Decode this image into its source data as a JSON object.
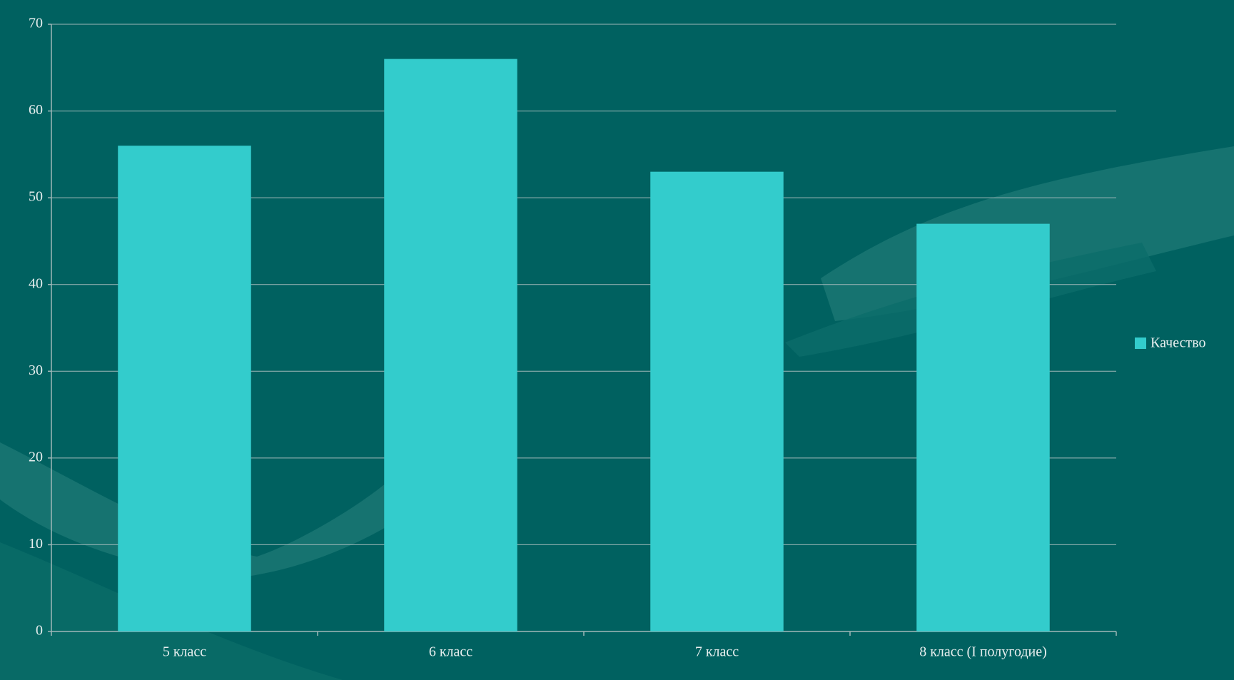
{
  "chart_data": {
    "type": "bar",
    "categories": [
      "5 класс",
      "6 класс",
      "7 класс",
      "8 класс (I полугодие)"
    ],
    "series": [
      {
        "name": "Качество",
        "color": "#33cccc",
        "values": [
          56,
          66,
          53,
          47
        ]
      }
    ],
    "ylim": [
      0,
      70
    ],
    "yticks": [
      0,
      10,
      20,
      30,
      40,
      50,
      60,
      70
    ],
    "grid": true,
    "legend": "right"
  }
}
